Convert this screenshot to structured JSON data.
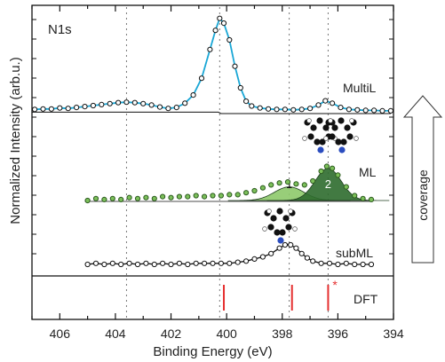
{
  "chart_data": {
    "type": "line",
    "panel_label": "N1s",
    "xlabel": "Binding Energy (eV)",
    "ylabel": "Normalized Intensity (arb.u.)",
    "xlim": [
      407,
      394
    ],
    "x_reversed": true,
    "x_ticks": [
      406,
      404,
      402,
      400,
      398,
      396,
      394
    ],
    "reference_lines_eV": [
      403.6,
      400.25,
      397.75,
      396.35
    ],
    "series": [
      {
        "name": "MultiL",
        "fit_color": "#1aa7d6",
        "marker": "open-circle",
        "points": [
          [
            406.9,
            0.05
          ],
          [
            406.6,
            0.06
          ],
          [
            406.3,
            0.06
          ],
          [
            406.0,
            0.08
          ],
          [
            405.7,
            0.07
          ],
          [
            405.4,
            0.09
          ],
          [
            405.1,
            0.11
          ],
          [
            404.8,
            0.13
          ],
          [
            404.5,
            0.15
          ],
          [
            404.2,
            0.17
          ],
          [
            403.9,
            0.19
          ],
          [
            403.6,
            0.2
          ],
          [
            403.3,
            0.19
          ],
          [
            403.0,
            0.17
          ],
          [
            402.7,
            0.14
          ],
          [
            402.4,
            0.1
          ],
          [
            402.1,
            0.07
          ],
          [
            401.8,
            0.09
          ],
          [
            401.5,
            0.18
          ],
          [
            401.2,
            0.35
          ],
          [
            400.9,
            0.7
          ],
          [
            400.6,
            1.3
          ],
          [
            400.4,
            1.7
          ],
          [
            400.25,
            1.95
          ],
          [
            400.1,
            1.85
          ],
          [
            399.9,
            1.5
          ],
          [
            399.7,
            0.95
          ],
          [
            399.5,
            0.5
          ],
          [
            399.3,
            0.22
          ],
          [
            399.1,
            0.12
          ],
          [
            398.8,
            0.08
          ],
          [
            398.5,
            0.06
          ],
          [
            398.2,
            0.05
          ],
          [
            397.9,
            0.05
          ],
          [
            397.6,
            0.04
          ],
          [
            397.3,
            0.05
          ],
          [
            397.0,
            0.07
          ],
          [
            396.7,
            0.14
          ],
          [
            396.45,
            0.23
          ],
          [
            396.2,
            0.18
          ],
          [
            395.9,
            0.09
          ],
          [
            395.6,
            0.05
          ],
          [
            395.3,
            0.04
          ],
          [
            395.0,
            0.03
          ],
          [
            394.7,
            0.03
          ],
          [
            394.4,
            0.02
          ],
          [
            394.1,
            0.02
          ]
        ]
      },
      {
        "name": "ML",
        "marker": "green-circle",
        "components": [
          {
            "label": "1",
            "center_eV": 397.75,
            "amplitude": 0.14,
            "width_eV": 0.85,
            "color": "#8dc96a"
          },
          {
            "label": "2",
            "center_eV": 396.35,
            "amplitude": 0.33,
            "width_eV": 0.75,
            "color": "#2e6b2e"
          }
        ],
        "points": [
          [
            405.0,
            0.0
          ],
          [
            404.7,
            0.02
          ],
          [
            404.4,
            0.01
          ],
          [
            404.1,
            0.02
          ],
          [
            403.8,
            0.01
          ],
          [
            403.5,
            0.03
          ],
          [
            403.2,
            0.02
          ],
          [
            402.9,
            0.03
          ],
          [
            402.6,
            0.02
          ],
          [
            402.3,
            0.04
          ],
          [
            402.0,
            0.03
          ],
          [
            401.7,
            0.04
          ],
          [
            401.4,
            0.04
          ],
          [
            401.1,
            0.05
          ],
          [
            400.8,
            0.04
          ],
          [
            400.5,
            0.05
          ],
          [
            400.2,
            0.05
          ],
          [
            399.9,
            0.06
          ],
          [
            399.6,
            0.06
          ],
          [
            399.3,
            0.08
          ],
          [
            399.0,
            0.1
          ],
          [
            398.7,
            0.13
          ],
          [
            398.4,
            0.16
          ],
          [
            398.1,
            0.18
          ],
          [
            397.8,
            0.19
          ],
          [
            397.5,
            0.17
          ],
          [
            397.2,
            0.16
          ],
          [
            396.9,
            0.2
          ],
          [
            396.6,
            0.3
          ],
          [
            396.4,
            0.35
          ],
          [
            396.2,
            0.33
          ],
          [
            396.0,
            0.26
          ],
          [
            395.7,
            0.14
          ],
          [
            395.4,
            0.05
          ],
          [
            395.1,
            0.02
          ],
          [
            394.8,
            0.01
          ]
        ]
      },
      {
        "name": "subML",
        "marker": "open-circle",
        "points": [
          [
            405.0,
            0.0
          ],
          [
            404.7,
            0.01
          ],
          [
            404.4,
            0.0
          ],
          [
            404.1,
            0.01
          ],
          [
            403.8,
            0.0
          ],
          [
            403.5,
            0.01
          ],
          [
            403.2,
            0.0
          ],
          [
            402.9,
            0.01
          ],
          [
            402.6,
            0.0
          ],
          [
            402.3,
            0.01
          ],
          [
            402.0,
            0.0
          ],
          [
            401.7,
            0.01
          ],
          [
            401.4,
            0.0
          ],
          [
            401.1,
            0.01
          ],
          [
            400.8,
            0.01
          ],
          [
            400.5,
            0.01
          ],
          [
            400.2,
            0.01
          ],
          [
            399.9,
            0.01
          ],
          [
            399.6,
            0.02
          ],
          [
            399.3,
            0.03
          ],
          [
            399.0,
            0.05
          ],
          [
            398.7,
            0.07
          ],
          [
            398.4,
            0.1
          ],
          [
            398.1,
            0.15
          ],
          [
            397.9,
            0.18
          ],
          [
            397.7,
            0.18
          ],
          [
            397.5,
            0.15
          ],
          [
            397.3,
            0.1
          ],
          [
            397.1,
            0.06
          ],
          [
            396.9,
            0.03
          ],
          [
            396.6,
            0.01
          ],
          [
            396.3,
            0.01
          ],
          [
            396.0,
            0.0
          ],
          [
            395.7,
            0.01
          ],
          [
            395.4,
            0.0
          ],
          [
            395.1,
            0.0
          ],
          [
            394.8,
            0.0
          ]
        ]
      }
    ],
    "dft": {
      "label": "DFT",
      "marker_text": "*",
      "lines_eV": [
        400.1,
        397.65,
        396.35
      ],
      "color": "#e53030",
      "starred_eV": 396.35
    },
    "coverage_arrow": {
      "label": "coverage",
      "direction": "up"
    }
  }
}
